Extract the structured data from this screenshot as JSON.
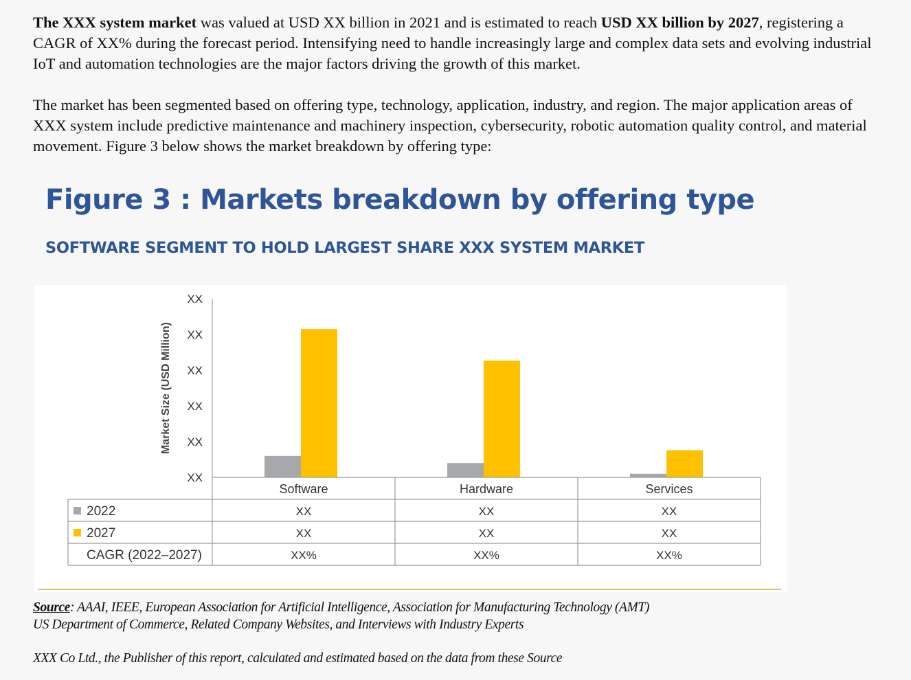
{
  "intro": {
    "p1_parts": [
      {
        "text": "The XXX system market",
        "bold": true
      },
      {
        "text": " was valued at USD XX billion in 2021 and is estimated to reach ",
        "bold": false
      },
      {
        "text": "USD XX billion by 2027",
        "bold": true
      },
      {
        "text": ", registering a CAGR of XX% during the forecast period. Intensifying need to handle increasingly large and complex data sets and evolving industrial IoT and automation technologies are the major factors driving the growth of this market.",
        "bold": false
      }
    ],
    "p2": "The market has been segmented based on offering type, technology, application, industry, and region. The major application areas of XXX system include predictive maintenance and machinery inspection, cybersecurity, robotic automation quality control, and material movement. Figure 3 below shows the market breakdown by offering type:"
  },
  "figure": {
    "title": "Figure 3 : Markets breakdown by offering type",
    "subtitle": "SOFTWARE SEGMENT TO HOLD LARGEST SHARE XXX SYSTEM MARKET"
  },
  "chart_data": {
    "type": "bar",
    "ylabel": "Market Size (USD Million)",
    "y_tick_labels": [
      "XX",
      "XX",
      "XX",
      "XX",
      "XX",
      "XX"
    ],
    "ylim": [
      0,
      5
    ],
    "categories": [
      "Software",
      "Hardware",
      "Services"
    ],
    "series": [
      {
        "name": "2022",
        "color": "#a6a8ab",
        "values": [
          0.6,
          0.4,
          0.1
        ]
      },
      {
        "name": "2027",
        "color": "#ffc000",
        "values": [
          4.15,
          3.27,
          0.76
        ]
      }
    ],
    "table_rows": [
      {
        "label": "2022",
        "color": "#a6a8ab",
        "values": [
          "XX",
          "XX",
          "XX"
        ]
      },
      {
        "label": "2027",
        "color": "#ffc000",
        "values": [
          "XX",
          "XX",
          "XX"
        ]
      },
      {
        "label": "CAGR (2022–2027)",
        "color": null,
        "values": [
          "XX%",
          "XX%",
          "XX%"
        ]
      }
    ],
    "grid": false
  },
  "source": {
    "label": "Source",
    "line1": ": AAAI, IEEE, European Association for Artificial Intelligence, Association for Manufacturing Technology (AMT)",
    "line2": "US Department of Commerce, Related Company Websites, and Interviews with Industry Experts",
    "note": "XXX Co Ltd., the Publisher of this report, calculated and estimated based on the data from these Source"
  }
}
